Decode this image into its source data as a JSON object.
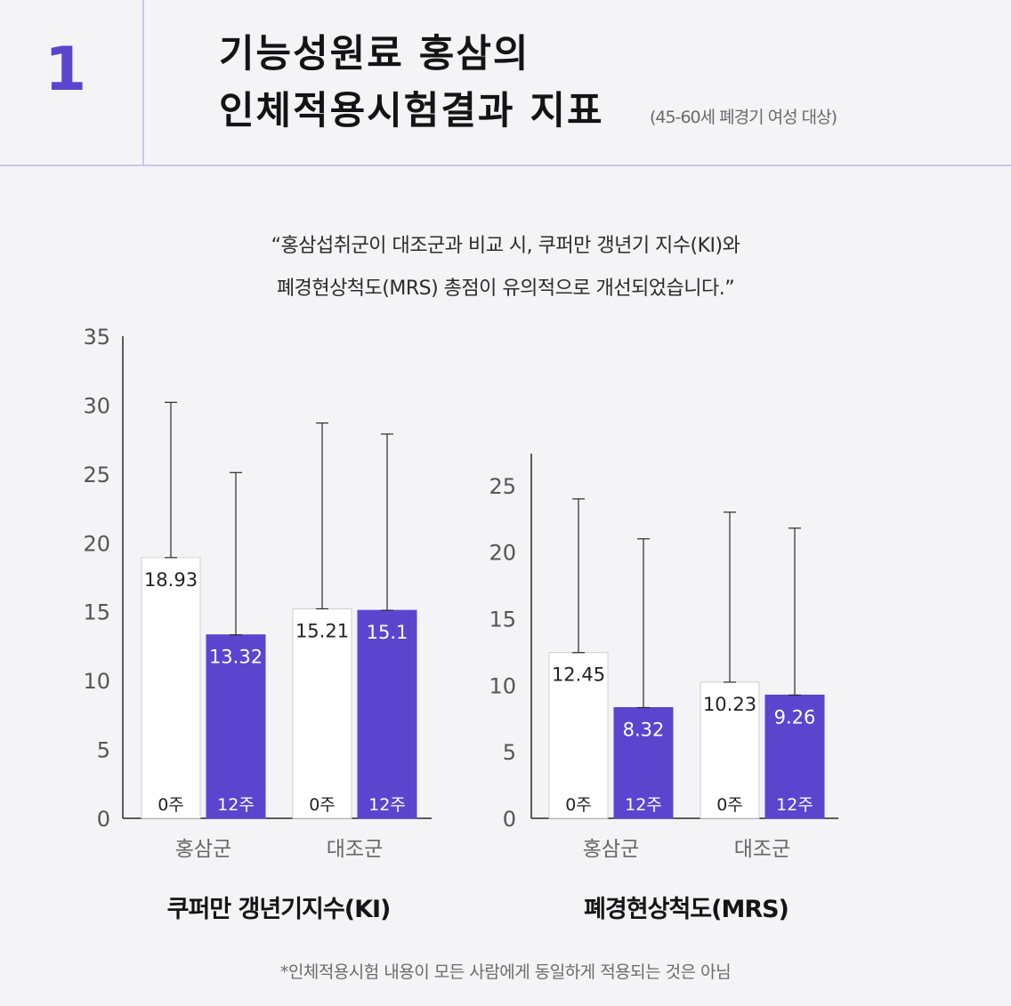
{
  "header": {
    "number": "1",
    "title_line1": "기능성원료 홍삼의",
    "title_line2": "인체적용시험결과 지표",
    "subtitle_note": "(45-60세 폐경기 여성 대상)"
  },
  "quote": {
    "line1": "“홍삼섭취군이 대조군과 비교 시, 쿠퍼만 갱년기 지수(KI)와",
    "line2": "폐경현상척도(MRS) 총점이 유의적으로 개선되었습니다.”"
  },
  "colors": {
    "accent": "#5b45cf",
    "baseline_bar": "#ffffff",
    "divider": "#c9c6ee"
  },
  "chart_data": [
    {
      "type": "bar",
      "title": "쿠퍼만 갱년기지수(KI)",
      "categories": [
        "홍삼군",
        "대조군"
      ],
      "series": [
        {
          "name": "0주",
          "values": [
            18.93,
            15.21
          ],
          "value_labels": [
            "18.93",
            "15.21"
          ],
          "error_top": [
            30.2,
            28.7
          ],
          "color": "#ffffff"
        },
        {
          "name": "12주",
          "values": [
            13.32,
            15.1
          ],
          "value_labels": [
            "13.32",
            "15.1"
          ],
          "error_top": [
            25.1,
            27.9
          ],
          "color": "#5b45cf"
        }
      ],
      "yticks": [
        0,
        5,
        10,
        15,
        20,
        25,
        30,
        35
      ],
      "ylim": [
        0,
        35
      ],
      "xlabel": "",
      "ylabel": ""
    },
    {
      "type": "bar",
      "title": "폐경현상척도(MRS)",
      "categories": [
        "홍삼군",
        "대조군"
      ],
      "series": [
        {
          "name": "0주",
          "values": [
            12.45,
            10.23
          ],
          "value_labels": [
            "12.45",
            "10.23"
          ],
          "error_top": [
            24.0,
            23.0
          ],
          "color": "#ffffff"
        },
        {
          "name": "12주",
          "values": [
            8.32,
            9.26
          ],
          "value_labels": [
            "8.32",
            "9.26"
          ],
          "error_top": [
            21.0,
            21.8
          ],
          "color": "#5b45cf"
        }
      ],
      "yticks": [
        0,
        5,
        10,
        15,
        20,
        25
      ],
      "ylim": [
        0,
        27.4
      ],
      "xlabel": "",
      "ylabel": ""
    }
  ],
  "footnote": "*인체적용시험 내용이 모든 사람에게 동일하게 적용되는 것은 아님"
}
